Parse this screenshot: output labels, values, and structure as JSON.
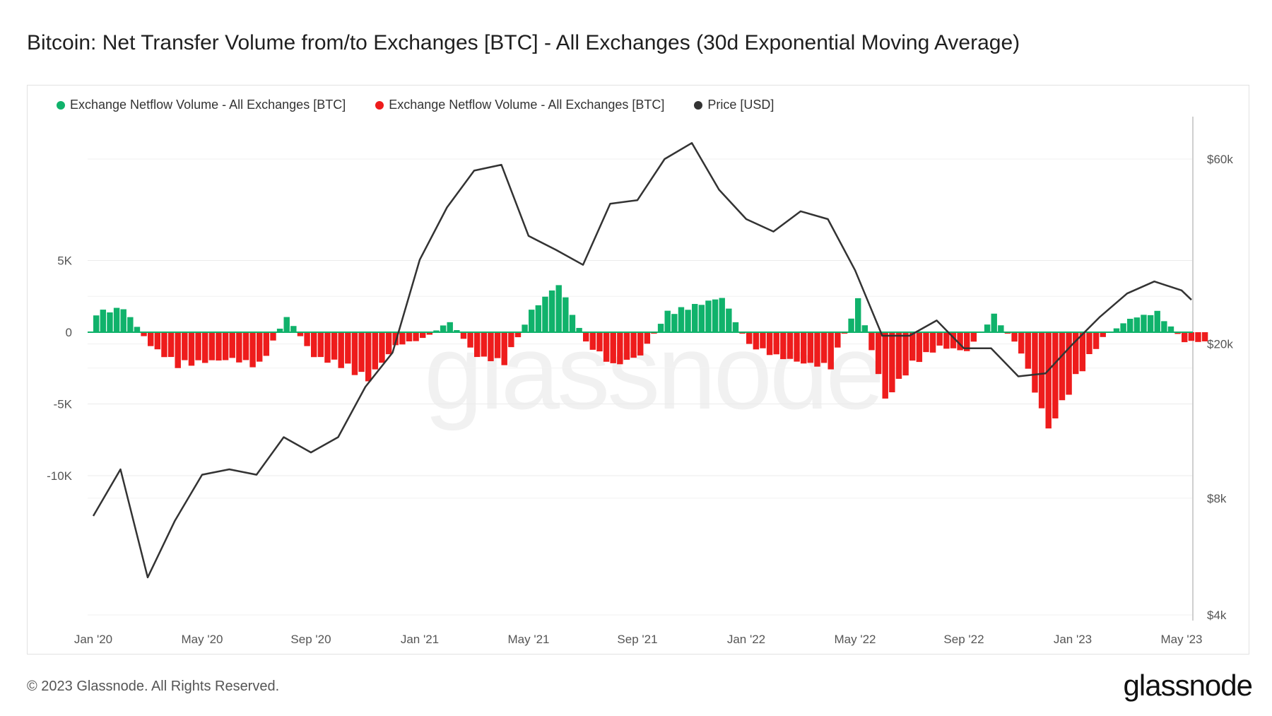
{
  "title": "Bitcoin: Net Transfer Volume from/to Exchanges [BTC] - All Exchanges (30d Exponential Moving Average)",
  "footer": "© 2023 Glassnode. All Rights Reserved.",
  "brand": "glassnode",
  "watermark": "glassnode",
  "legend": [
    {
      "label": "Exchange Netflow Volume - All Exchanges [BTC]",
      "color": "#10b26b"
    },
    {
      "label": "Exchange Netflow Volume - All Exchanges [BTC]",
      "color": "#ee1c1c"
    },
    {
      "label": "Price [USD]",
      "color": "#333333"
    }
  ],
  "chart_data": {
    "type": "bar",
    "x_tick_labels": [
      "Jan '20",
      "May '20",
      "Sep '20",
      "Jan '21",
      "May '21",
      "Sep '21",
      "Jan '22",
      "May '22",
      "Sep '22",
      "Jan '23",
      "May '23"
    ],
    "y_left_ticks": [
      "5K",
      "0",
      "-5K",
      "-10K"
    ],
    "y_left_range": [
      -10000,
      6000
    ],
    "y_right_ticks": [
      "$60k",
      "$20k",
      "$8k",
      "$4k"
    ],
    "y_right_scale": "log",
    "y_right_range": [
      4000,
      75000
    ],
    "grid": true,
    "legend_position": "top-left",
    "colors": {
      "positive": "#10b26b",
      "negative": "#ee1c1c",
      "price": "#333333"
    },
    "netflow_series": {
      "name": "Exchange Netflow Volume - All Exchanges [BTC]",
      "months": [
        "Jan '20",
        "Feb '20",
        "Mar '20",
        "Apr '20",
        "May '20",
        "Jun '20",
        "Jul '20",
        "Aug '20",
        "Sep '20",
        "Oct '20",
        "Nov '20",
        "Dec '20",
        "Jan '21",
        "Feb '21",
        "Mar '21",
        "Apr '21",
        "May '21",
        "Jun '21",
        "Jul '21",
        "Aug '21",
        "Sep '21",
        "Oct '21",
        "Nov '21",
        "Dec '21",
        "Jan '22",
        "Feb '22",
        "Mar '22",
        "Apr '22",
        "May '22",
        "Jun '22",
        "Jul '22",
        "Aug '22",
        "Sep '22",
        "Oct '22",
        "Nov '22",
        "Dec '22",
        "Jan '23",
        "Feb '23",
        "Mar '23",
        "Apr '23",
        "May '23"
      ],
      "values": [
        1500,
        1800,
        -1000,
        -2500,
        -2200,
        -2000,
        -2600,
        1200,
        -1800,
        -2500,
        -3500,
        -1000,
        -500,
        800,
        -1800,
        -2300,
        1600,
        3600,
        -800,
        -2500,
        -1700,
        1500,
        2000,
        2600,
        -1000,
        -1800,
        -2300,
        -2600,
        2400,
        -5000,
        -2400,
        -1100,
        -1400,
        1300,
        -1500,
        -7200,
        -3500,
        -400,
        1000,
        1500,
        -700
      ]
    },
    "price_series": {
      "name": "Price [USD]",
      "months": [
        "Jan '20",
        "Feb '20",
        "Mar '20",
        "Apr '20",
        "May '20",
        "Jun '20",
        "Jul '20",
        "Aug '20",
        "Sep '20",
        "Oct '20",
        "Nov '20",
        "Dec '20",
        "Jan '21",
        "Feb '21",
        "Mar '21",
        "Apr '21",
        "May '21",
        "Jun '21",
        "Jul '21",
        "Aug '21",
        "Sep '21",
        "Oct '21",
        "Nov '21",
        "Dec '21",
        "Jan '22",
        "Feb '22",
        "Mar '22",
        "Apr '22",
        "May '22",
        "Jun '22",
        "Jul '22",
        "Aug '22",
        "Sep '22",
        "Oct '22",
        "Nov '22",
        "Dec '22",
        "Jan '23",
        "Feb '23",
        "Mar '23",
        "Apr '23",
        "May '23",
        "Jun '23"
      ],
      "values": [
        7200,
        9500,
        5000,
        7000,
        9200,
        9500,
        9200,
        11500,
        10500,
        11500,
        15500,
        19000,
        33000,
        45000,
        56000,
        58000,
        38000,
        35000,
        32000,
        46000,
        47000,
        60000,
        66000,
        50000,
        42000,
        39000,
        44000,
        42000,
        31000,
        21000,
        21000,
        23000,
        19500,
        19500,
        16500,
        16800,
        20000,
        23500,
        27000,
        29000,
        27500,
        26000
      ]
    }
  }
}
